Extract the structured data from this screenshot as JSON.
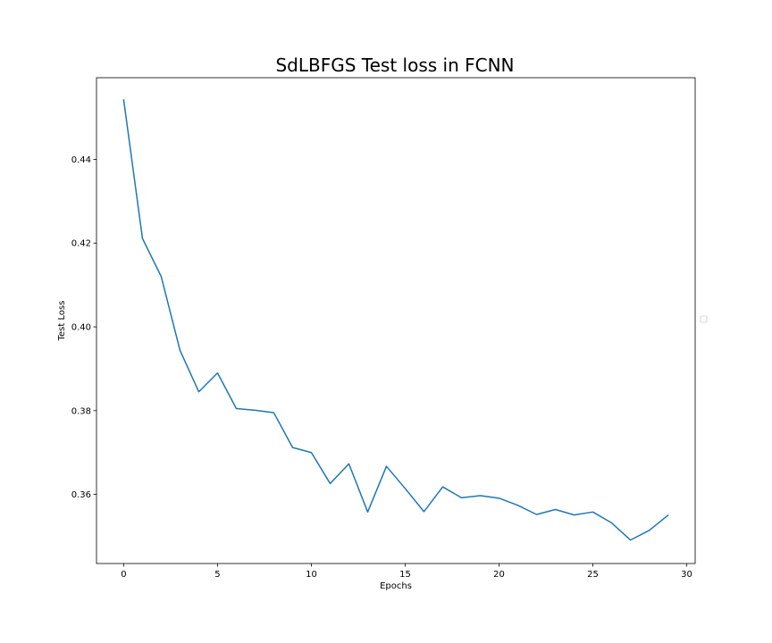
{
  "chart_data": {
    "type": "line",
    "title": "SdLBFGS Test loss in FCNN",
    "xlabel": "Epochs",
    "ylabel": "Test Loss",
    "xlim": [
      -1.45,
      30.45
    ],
    "ylim": [
      0.3435,
      0.4595
    ],
    "xticks": [
      0,
      5,
      10,
      15,
      20,
      25,
      30
    ],
    "yticks": [
      0.36,
      0.38,
      0.4,
      0.42,
      0.44
    ],
    "ytick_labels": [
      "0.36",
      "0.38",
      "0.40",
      "0.42",
      "0.44"
    ],
    "grid": false,
    "legend": "empty box at right edge",
    "series": [
      {
        "color": "#1f77b4",
        "x": [
          0,
          1,
          2,
          3,
          4,
          5,
          6,
          7,
          8,
          9,
          10,
          11,
          12,
          13,
          14,
          15,
          16,
          17,
          18,
          19,
          20,
          21,
          22,
          23,
          24,
          25,
          26,
          27,
          28,
          29
        ],
        "y": [
          0.4542,
          0.4211,
          0.412,
          0.3944,
          0.3845,
          0.389,
          0.3805,
          0.3801,
          0.3795,
          0.3712,
          0.37,
          0.3626,
          0.3673,
          0.3558,
          0.3667,
          0.3614,
          0.3559,
          0.3618,
          0.3592,
          0.3597,
          0.3591,
          0.3574,
          0.3552,
          0.3564,
          0.3551,
          0.3558,
          0.3532,
          0.3491,
          0.3514,
          0.355
        ]
      }
    ]
  }
}
